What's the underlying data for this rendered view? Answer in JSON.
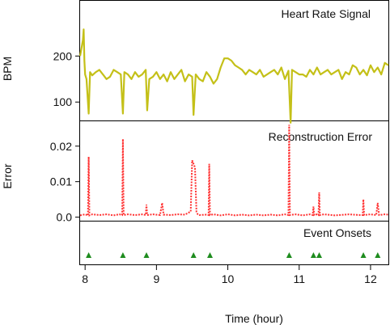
{
  "chart_data": [
    {
      "type": "line",
      "title": "Heart Rate Signal",
      "ylabel": "BPM",
      "xlabel": "",
      "xlim": [
        7.93,
        12.25
      ],
      "ylim": [
        60,
        320
      ],
      "yticks": [
        100,
        200
      ],
      "grid": false,
      "color": "#c4c018",
      "series": [
        {
          "x": [
            7.93,
            7.95,
            7.97,
            7.98,
            7.99,
            8.0,
            8.02,
            8.05,
            8.07,
            8.1,
            8.15,
            8.2,
            8.25,
            8.3,
            8.35,
            8.4,
            8.45,
            8.5,
            8.53,
            8.55,
            8.6,
            8.65,
            8.7,
            8.75,
            8.8,
            8.85,
            8.87,
            8.9,
            8.95,
            9.0,
            9.05,
            9.1,
            9.15,
            9.2,
            9.25,
            9.3,
            9.35,
            9.4,
            9.45,
            9.5,
            9.52,
            9.55,
            9.6,
            9.65,
            9.7,
            9.75,
            9.8,
            9.85,
            9.9,
            9.95,
            10.0,
            10.05,
            10.1,
            10.15,
            10.2,
            10.25,
            10.3,
            10.35,
            10.4,
            10.45,
            10.5,
            10.55,
            10.6,
            10.65,
            10.7,
            10.75,
            10.8,
            10.85,
            10.88,
            10.9,
            10.95,
            11.0,
            11.05,
            11.1,
            11.15,
            11.2,
            11.25,
            11.3,
            11.35,
            11.4,
            11.45,
            11.5,
            11.55,
            11.6,
            11.65,
            11.7,
            11.75,
            11.8,
            11.85,
            11.9,
            11.95,
            12.0,
            12.05,
            12.1,
            12.15,
            12.2,
            12.25
          ],
          "y": [
            200,
            218,
            235,
            258,
            190,
            160,
            150,
            75,
            165,
            158,
            165,
            170,
            160,
            150,
            155,
            170,
            165,
            160,
            75,
            165,
            160,
            150,
            165,
            155,
            160,
            170,
            82,
            150,
            155,
            165,
            150,
            160,
            145,
            165,
            150,
            160,
            170,
            145,
            160,
            155,
            72,
            160,
            150,
            145,
            165,
            155,
            140,
            150,
            175,
            195,
            195,
            190,
            180,
            175,
            170,
            160,
            170,
            165,
            160,
            170,
            155,
            160,
            165,
            170,
            160,
            175,
            150,
            168,
            55,
            170,
            165,
            160,
            160,
            155,
            170,
            160,
            175,
            160,
            165,
            170,
            160,
            165,
            170,
            150,
            165,
            160,
            180,
            175,
            160,
            170,
            158,
            180,
            165,
            175,
            160,
            185,
            180
          ]
        }
      ]
    },
    {
      "type": "line",
      "title": "Reconstruction Error",
      "ylabel": "Error",
      "xlabel": "",
      "xlim": [
        7.93,
        12.25
      ],
      "ylim": [
        -0.001,
        0.027
      ],
      "yticks": [
        0.0,
        0.01,
        0.02
      ],
      "ytick_labels": [
        "0.0",
        "0.01",
        "0.02"
      ],
      "grid": false,
      "color": "#ff3333",
      "series": [
        {
          "x": [
            7.93,
            8.0,
            8.04,
            8.05,
            8.06,
            8.1,
            8.2,
            8.3,
            8.4,
            8.48,
            8.52,
            8.53,
            8.54,
            8.6,
            8.7,
            8.8,
            8.85,
            8.86,
            8.87,
            8.95,
            9.05,
            9.08,
            9.1,
            9.2,
            9.3,
            9.4,
            9.48,
            9.5,
            9.52,
            9.54,
            9.56,
            9.58,
            9.6,
            9.7,
            9.73,
            9.74,
            9.75,
            9.8,
            9.9,
            10.0,
            10.1,
            10.2,
            10.3,
            10.4,
            10.5,
            10.6,
            10.7,
            10.8,
            10.85,
            10.86,
            10.87,
            10.95,
            11.05,
            11.15,
            11.19,
            11.2,
            11.21,
            11.25,
            11.27,
            11.28,
            11.29,
            11.35,
            11.5,
            11.7,
            11.85,
            11.89,
            11.9,
            11.91,
            12.0,
            12.08,
            12.1,
            12.12,
            12.2,
            12.25
          ],
          "y": [
            0.0005,
            0.0008,
            0.0005,
            0.017,
            0.0005,
            0.0008,
            0.0006,
            0.0008,
            0.0005,
            0.0008,
            0.0006,
            0.022,
            0.0006,
            0.0008,
            0.0006,
            0.0008,
            0.0006,
            0.0035,
            0.0006,
            0.0008,
            0.0006,
            0.004,
            0.0007,
            0.0006,
            0.0008,
            0.0007,
            0.0016,
            0.016,
            0.015,
            0.014,
            0.0015,
            0.0008,
            0.0006,
            0.0007,
            0.0006,
            0.015,
            0.0006,
            0.0008,
            0.0005,
            0.0008,
            0.0005,
            0.0007,
            0.0005,
            0.0007,
            0.0005,
            0.0007,
            0.0005,
            0.0008,
            0.0006,
            0.026,
            0.0006,
            0.0008,
            0.0005,
            0.0008,
            0.0006,
            0.003,
            0.0006,
            0.0008,
            0.0006,
            0.007,
            0.0006,
            0.0008,
            0.0005,
            0.0008,
            0.0006,
            0.0006,
            0.005,
            0.0006,
            0.0008,
            0.0006,
            0.004,
            0.0006,
            0.0008,
            0.0007
          ]
        }
      ]
    },
    {
      "type": "scatter",
      "title": "Event Onsets",
      "xlabel": "Time (hour)",
      "xlim": [
        7.93,
        12.25
      ],
      "xticks": [
        8,
        9,
        10,
        11,
        12
      ],
      "xtick_labels": [
        "8",
        "9",
        "10",
        "11",
        "12"
      ],
      "grid": false,
      "color": "#1e8c1e",
      "marker": "triangle",
      "x": [
        8.05,
        8.53,
        8.86,
        9.52,
        9.75,
        10.86,
        11.2,
        11.28,
        11.9,
        12.1
      ]
    }
  ]
}
